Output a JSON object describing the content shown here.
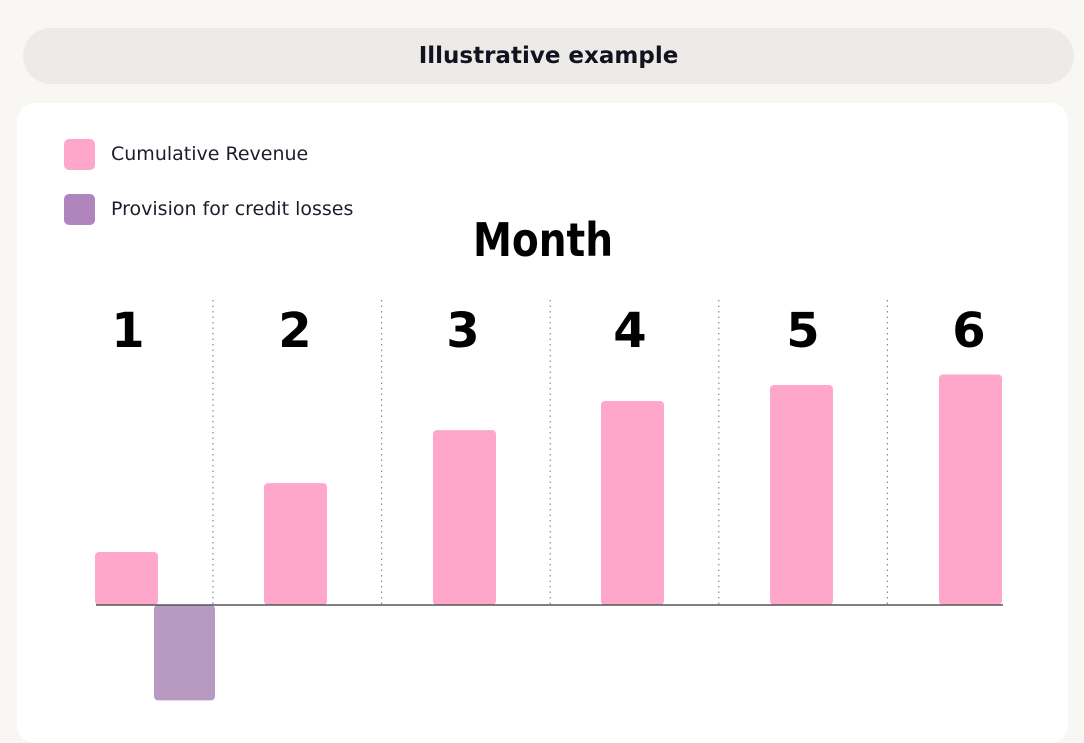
{
  "header": {
    "title": "Illustrative example"
  },
  "legend": {
    "items": [
      {
        "label": "Cumulative Revenue",
        "color": "#ffa6cb"
      },
      {
        "label": "Provision for credit losses",
        "color": "#b084bd"
      }
    ]
  },
  "chart_data": {
    "type": "bar",
    "title": "Month",
    "categories": [
      "1",
      "2",
      "3",
      "4",
      "5",
      "6"
    ],
    "series": [
      {
        "name": "Cumulative Revenue",
        "color": "#ffa6cb",
        "values": [
          1,
          2.3,
          3.3,
          3.85,
          4.15,
          4.35
        ]
      },
      {
        "name": "Provision for credit losses",
        "color": "#b899c1",
        "values": [
          -1.8,
          null,
          null,
          null,
          null,
          null
        ]
      }
    ],
    "ylim": [
      -1.8,
      5.0
    ],
    "grid": "dotted vertical separators",
    "legend_position": "top-left"
  }
}
